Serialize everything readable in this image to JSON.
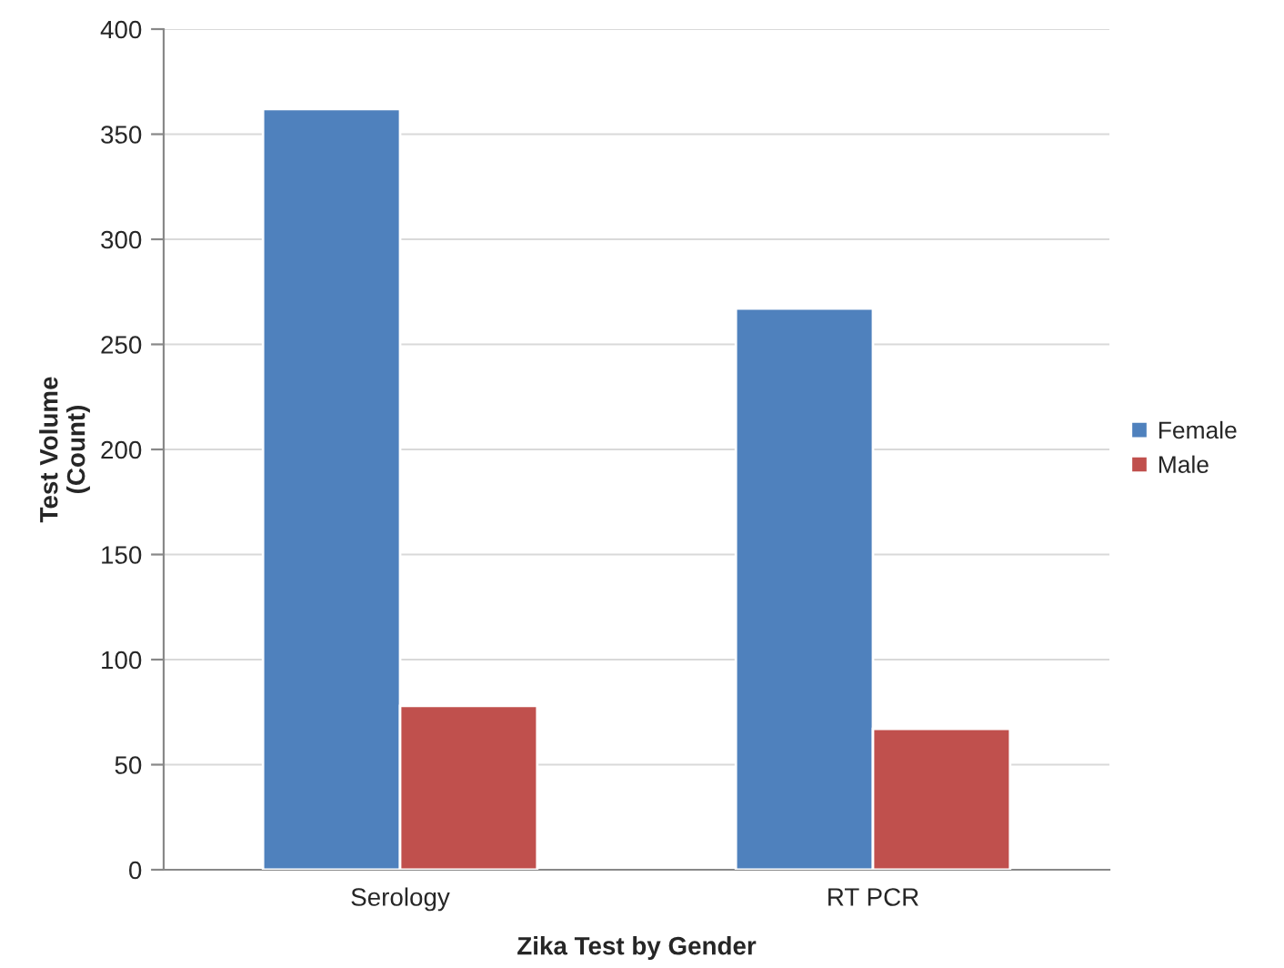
{
  "chart_data": {
    "type": "bar",
    "xlabel": "Zika Test by Gender",
    "ylabel": "Test Volume\n(Count)",
    "categories": [
      "Serology",
      "RT PCR"
    ],
    "series": [
      {
        "name": "Female",
        "color": "#4f81bd",
        "values": [
          362,
          267
        ]
      },
      {
        "name": "Male",
        "color": "#c0504d",
        "values": [
          78,
          67
        ]
      }
    ],
    "ylim": [
      0,
      400
    ],
    "yticks": [
      0,
      50,
      100,
      150,
      200,
      250,
      300,
      350,
      400
    ],
    "grid": "y",
    "legend": "right"
  }
}
